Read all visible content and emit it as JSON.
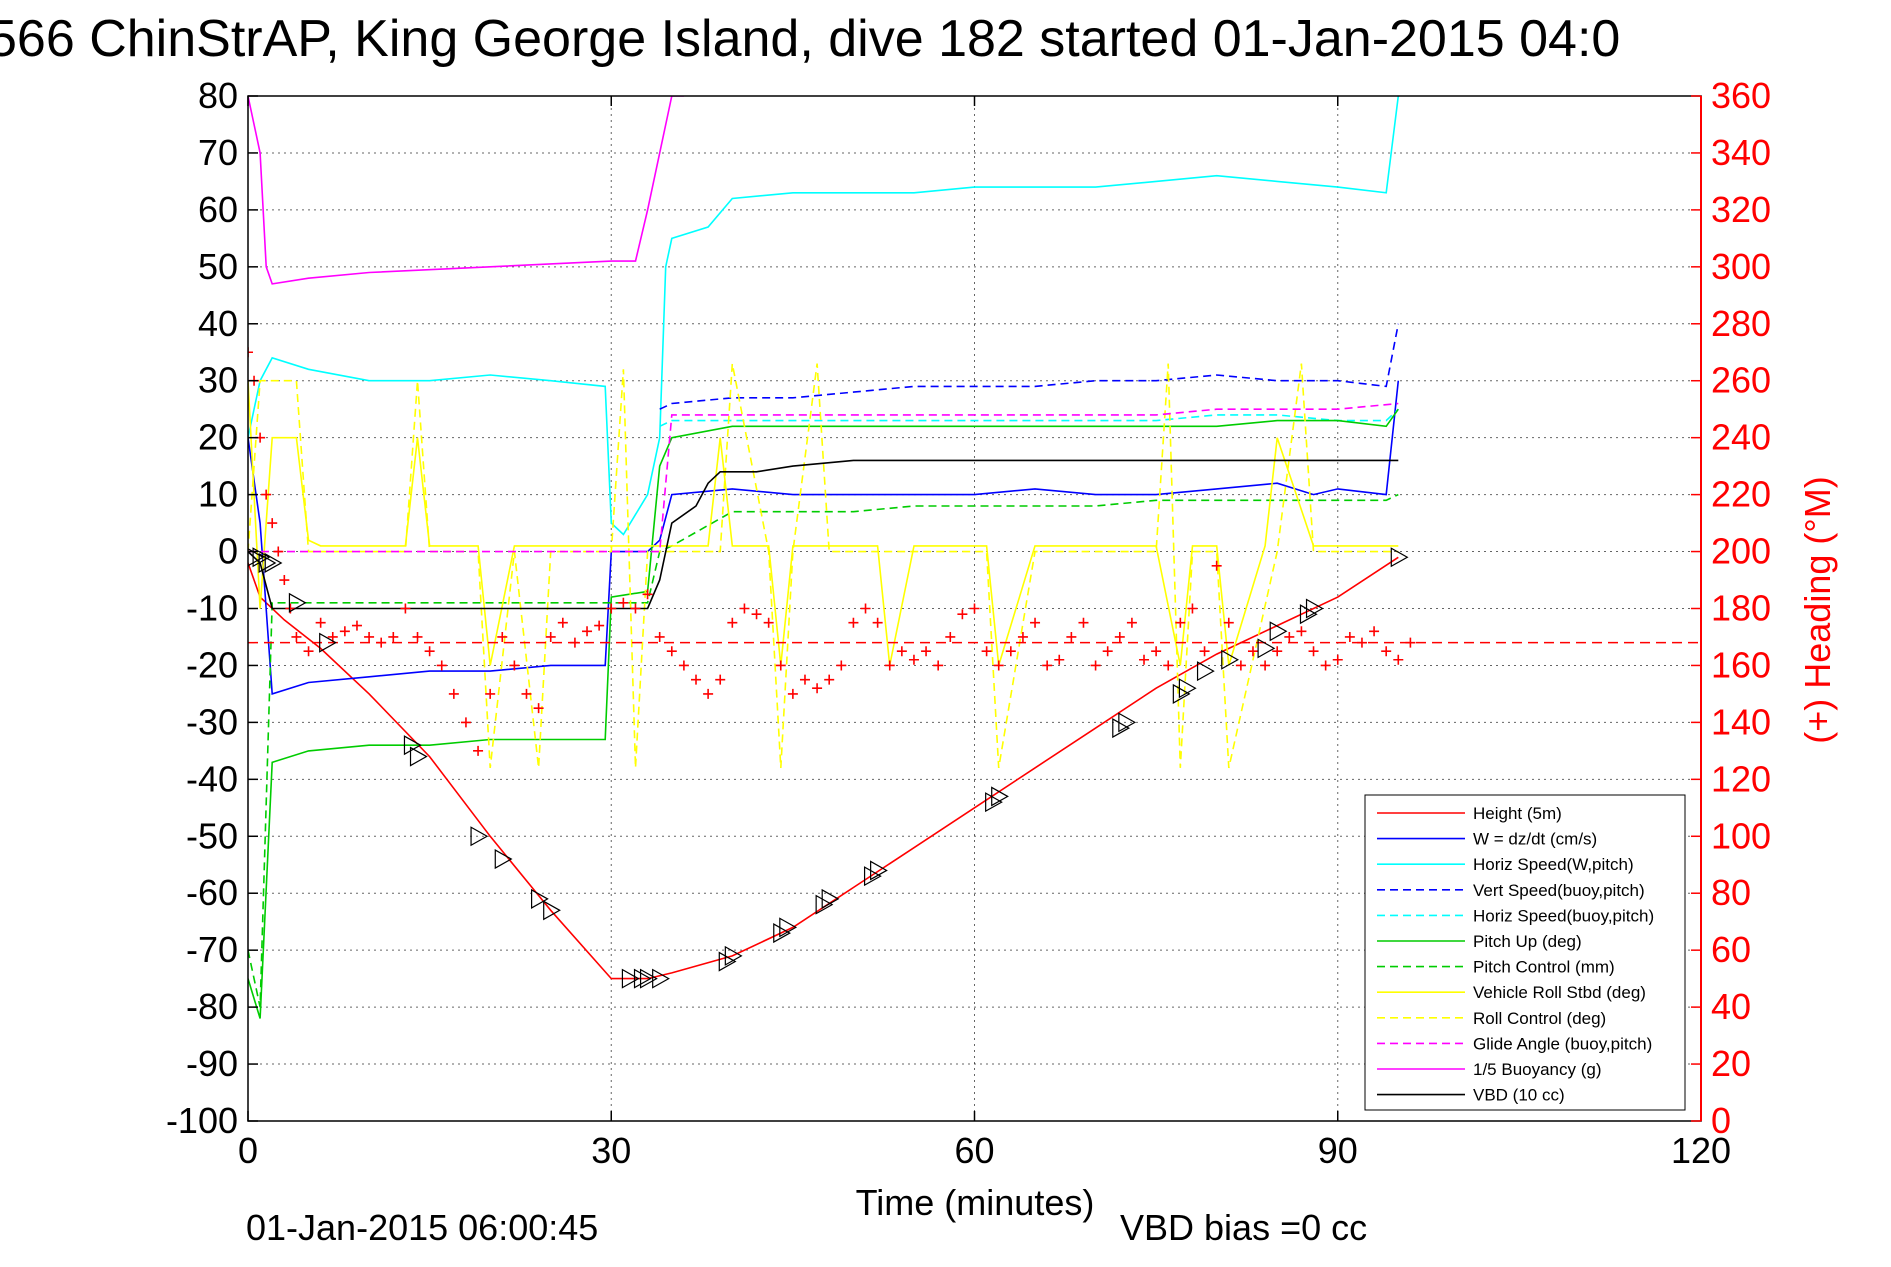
{
  "chart_data": {
    "type": "line",
    "title": "566 ChinStrAP, King George Island, dive 182 started 01-Jan-2015 04:0",
    "xlabel": "Time (minutes)",
    "ylabel_right": "(+) Heading (°M)",
    "footer_left": "01-Jan-2015 06:00:45",
    "footer_right": "VBD bias =0 cc",
    "xlim": [
      0,
      120
    ],
    "ylim": [
      -100,
      80
    ],
    "y2lim": [
      0,
      360
    ],
    "xticks": [
      0,
      30,
      60,
      90,
      120
    ],
    "yticks": [
      80,
      70,
      60,
      50,
      40,
      30,
      20,
      10,
      0,
      -10,
      -20,
      -30,
      -40,
      -50,
      -60,
      -70,
      -80,
      -90,
      -100
    ],
    "y2ticks": [
      360,
      340,
      320,
      300,
      280,
      260,
      240,
      220,
      200,
      180,
      160,
      140,
      120,
      100,
      80,
      60,
      40,
      20,
      0
    ],
    "grid": true,
    "legend_position": "lower-right",
    "colors": {
      "heading": "#ff0000",
      "right_axis": "#ff0000"
    },
    "series": [
      {
        "name": "Height (5m)",
        "color": "#ff0000",
        "dash": "solid",
        "x": [
          0,
          1,
          3,
          6,
          10,
          15,
          20,
          25,
          30,
          33,
          35,
          40,
          45,
          50,
          55,
          60,
          65,
          70,
          75,
          80,
          85,
          90,
          95
        ],
        "y": [
          -2,
          -8,
          -12,
          -17,
          -25,
          -36,
          -50,
          -63,
          -75,
          -75,
          -74,
          -71,
          -66,
          -59,
          -52,
          -45,
          -38,
          -31,
          -24,
          -18,
          -13,
          -8,
          -1
        ]
      },
      {
        "name": "W = dz/dt (cm/s)",
        "color": "#0000ff",
        "dash": "solid",
        "x": [
          0,
          1,
          2,
          5,
          10,
          15,
          20,
          25,
          29.5,
          30,
          31,
          33,
          34,
          35,
          40,
          45,
          50,
          55,
          60,
          65,
          70,
          75,
          80,
          85,
          88,
          90,
          94,
          95
        ],
        "y": [
          20,
          5,
          -25,
          -23,
          -22,
          -21,
          -21,
          -20,
          -20,
          0,
          0,
          0,
          2,
          10,
          11,
          10,
          10,
          10,
          10,
          11,
          10,
          10,
          11,
          12,
          10,
          11,
          10,
          30
        ]
      },
      {
        "name": "Horiz Speed(W,pitch)",
        "color": "#00ffff",
        "dash": "solid",
        "x": [
          0,
          1,
          2,
          5,
          10,
          15,
          20,
          25,
          29.5,
          30,
          31,
          33,
          34,
          34.5,
          35,
          38,
          40,
          45,
          50,
          55,
          60,
          65,
          70,
          75,
          80,
          85,
          90,
          94,
          95
        ],
        "y": [
          20,
          30,
          34,
          32,
          30,
          30,
          31,
          30,
          29,
          5,
          3,
          10,
          20,
          50,
          55,
          57,
          62,
          63,
          63,
          63,
          64,
          64,
          64,
          65,
          66,
          65,
          64,
          63,
          80
        ]
      },
      {
        "name": "Vert Speed(buoy,pitch)",
        "color": "#0000ff",
        "dash": "dashed",
        "x": [
          34,
          35,
          40,
          45,
          50,
          55,
          60,
          65,
          70,
          75,
          80,
          85,
          90,
          94,
          95
        ],
        "y": [
          25,
          26,
          27,
          27,
          28,
          29,
          29,
          29,
          30,
          30,
          31,
          30,
          30,
          29,
          40
        ]
      },
      {
        "name": "Horiz Speed(buoy,pitch)",
        "color": "#00ffff",
        "dash": "dashed",
        "x": [
          34,
          35,
          40,
          45,
          50,
          55,
          60,
          65,
          70,
          75,
          80,
          85,
          90,
          94,
          95
        ],
        "y": [
          22,
          23,
          23,
          23,
          23,
          23,
          23,
          23,
          23,
          23,
          24,
          24,
          23,
          23,
          25
        ]
      },
      {
        "name": "Pitch Up (deg)",
        "color": "#00cc00",
        "dash": "solid",
        "x": [
          0,
          1,
          2,
          5,
          10,
          15,
          20,
          25,
          29.5,
          30,
          33,
          34,
          35,
          40,
          45,
          50,
          55,
          60,
          65,
          70,
          75,
          80,
          85,
          90,
          94,
          95
        ],
        "y": [
          -75,
          -82,
          -37,
          -35,
          -34,
          -34,
          -33,
          -33,
          -33,
          -8,
          -7,
          15,
          20,
          22,
          22,
          22,
          22,
          22,
          22,
          22,
          22,
          22,
          23,
          23,
          22,
          25
        ]
      },
      {
        "name": "Pitch Control (mm)",
        "color": "#00cc00",
        "dash": "dashed",
        "x": [
          0,
          1,
          2,
          5,
          10,
          20,
          29.5,
          30,
          33,
          34,
          35,
          40,
          45,
          50,
          55,
          60,
          65,
          70,
          75,
          80,
          85,
          90,
          94,
          95
        ],
        "y": [
          -70,
          -80,
          -9,
          -9,
          -9,
          -9,
          -9,
          -9,
          -9,
          0,
          1,
          7,
          7,
          7,
          8,
          8,
          8,
          8,
          9,
          9,
          9,
          9,
          9,
          10
        ]
      },
      {
        "name": "Vehicle Roll Stbd (deg)",
        "color": "#ffff00",
        "dash": "solid",
        "x": [
          0,
          1,
          2,
          4,
          5,
          6,
          7,
          10,
          13,
          14,
          15,
          19,
          20,
          22,
          25,
          30,
          33,
          34,
          35,
          38,
          39,
          40,
          43,
          44,
          45,
          50,
          52,
          53,
          55,
          60,
          61,
          62,
          65,
          75,
          77,
          78,
          80,
          81,
          84,
          85,
          88,
          90,
          95
        ],
        "y": [
          30,
          -10,
          20,
          20,
          2,
          1,
          1,
          1,
          1,
          20,
          1,
          1,
          -20,
          1,
          1,
          1,
          1,
          1,
          1,
          1,
          20,
          1,
          1,
          -20,
          1,
          1,
          1,
          -20,
          1,
          1,
          1,
          -20,
          1,
          1,
          -20,
          1,
          1,
          -20,
          1,
          20,
          1,
          1,
          1
        ]
      },
      {
        "name": "Roll Control (deg)",
        "color": "#ffff00",
        "dash": "dashed",
        "x": [
          0,
          1,
          2,
          4,
          5,
          7,
          10,
          13,
          14,
          15,
          19,
          20,
          22,
          24,
          25,
          30,
          31,
          32,
          33,
          39,
          40,
          43,
          44,
          45,
          47,
          48,
          50,
          61,
          62,
          65,
          75,
          76,
          77,
          78,
          80,
          81,
          85,
          87,
          88,
          90,
          95
        ],
        "y": [
          0,
          30,
          30,
          30,
          0,
          0,
          0,
          0,
          30,
          0,
          0,
          -38,
          0,
          -38,
          0,
          0,
          32,
          -38,
          0,
          0,
          33,
          0,
          -38,
          0,
          33,
          0,
          0,
          0,
          -38,
          0,
          0,
          33,
          -38,
          0,
          0,
          -38,
          0,
          33,
          0,
          0,
          0
        ]
      },
      {
        "name": "Glide Angle (buoy,pitch)",
        "color": "#ff00ff",
        "dash": "dashed",
        "x": [
          0,
          10,
          20,
          30,
          33,
          34,
          35,
          40,
          45,
          50,
          55,
          60,
          65,
          70,
          75,
          80,
          85,
          90,
          95
        ],
        "y": [
          0,
          0,
          0,
          0,
          0,
          0,
          24,
          24,
          24,
          24,
          24,
          24,
          24,
          24,
          24,
          25,
          25,
          25,
          26
        ]
      },
      {
        "name": "1/5 Buoyancy (g)",
        "color": "#ff00ff",
        "dash": "solid",
        "x": [
          0,
          1,
          1.5,
          2,
          5,
          10,
          20,
          30,
          32,
          33,
          34,
          35,
          36
        ],
        "y": [
          80,
          70,
          50,
          47,
          48,
          49,
          50,
          51,
          51,
          60,
          70,
          80,
          80
        ]
      },
      {
        "name": "VBD (10 cc)",
        "color": "#000000",
        "dash": "solid",
        "x": [
          0,
          1,
          2,
          5,
          10,
          20,
          29.5,
          30,
          33,
          34,
          35,
          37,
          38,
          39,
          40,
          42,
          45,
          50,
          60,
          70,
          80,
          90,
          95
        ],
        "y": [
          0,
          -2,
          -10,
          -10,
          -10,
          -10,
          -10,
          -10,
          -10,
          -5,
          5,
          8,
          12,
          14,
          14,
          14,
          15,
          16,
          16,
          16,
          16,
          16,
          16
        ]
      }
    ],
    "heading_series": {
      "name": "(+) Heading (°M)",
      "color": "#ff0000",
      "marker": "+",
      "mean_line": 168,
      "x": [
        0,
        0.5,
        1,
        1.5,
        2,
        2.5,
        3,
        3.5,
        4,
        5,
        6,
        7,
        8,
        9,
        10,
        11,
        12,
        13,
        14,
        15,
        16,
        17,
        18,
        19,
        20,
        21,
        22,
        23,
        24,
        25,
        26,
        27,
        28,
        29,
        30,
        31,
        32,
        33,
        34,
        35,
        36,
        37,
        38,
        39,
        40,
        41,
        42,
        43,
        44,
        45,
        46,
        47,
        48,
        49,
        50,
        51,
        52,
        53,
        54,
        55,
        56,
        57,
        58,
        59,
        60,
        61,
        62,
        63,
        64,
        65,
        66,
        67,
        68,
        69,
        70,
        71,
        72,
        73,
        74,
        75,
        76,
        77,
        78,
        79,
        80,
        81,
        82,
        83,
        84,
        85,
        86,
        87,
        88,
        89,
        90,
        91,
        92,
        93,
        94,
        95,
        96
      ],
      "y": [
        270,
        260,
        240,
        220,
        210,
        200,
        190,
        180,
        170,
        165,
        175,
        170,
        172,
        174,
        170,
        168,
        170,
        180,
        170,
        165,
        160,
        150,
        140,
        130,
        150,
        170,
        160,
        150,
        145,
        170,
        175,
        168,
        172,
        174,
        180,
        182,
        180,
        185,
        170,
        165,
        160,
        155,
        150,
        155,
        175,
        180,
        178,
        175,
        160,
        150,
        155,
        152,
        155,
        160,
        175,
        180,
        175,
        160,
        165,
        162,
        165,
        160,
        170,
        178,
        180,
        165,
        160,
        165,
        170,
        175,
        160,
        162,
        170,
        175,
        160,
        165,
        170,
        175,
        162,
        165,
        160,
        175,
        180,
        165,
        195,
        175,
        160,
        165,
        160,
        165,
        170,
        172,
        165,
        160,
        162,
        170,
        168,
        172,
        165,
        162,
        168
      ]
    },
    "markers": {
      "symbol": "triangle",
      "color": "#000000",
      "x": [
        0.5,
        1,
        1.5,
        2,
        4,
        6.5,
        13.5,
        14,
        19,
        21,
        24,
        25,
        31.5,
        32.5,
        33,
        34,
        39.5,
        40,
        44,
        44.5,
        47.5,
        48,
        51.5,
        52,
        61.5,
        62,
        72,
        72.5,
        77,
        77.5,
        79,
        81,
        84,
        85,
        87.5,
        88,
        95
      ],
      "y": [
        -1,
        -1,
        -2,
        -2,
        -9,
        -16,
        -34,
        -36,
        -50,
        -54,
        -61,
        -63,
        -75,
        -75,
        -75,
        -75,
        -72,
        -71,
        -67,
        -66,
        -62,
        -61,
        -57,
        -56,
        -44,
        -43,
        -31,
        -30,
        -25,
        -24,
        -21,
        -19,
        -17,
        -14,
        -11,
        -10,
        -1
      ]
    }
  }
}
